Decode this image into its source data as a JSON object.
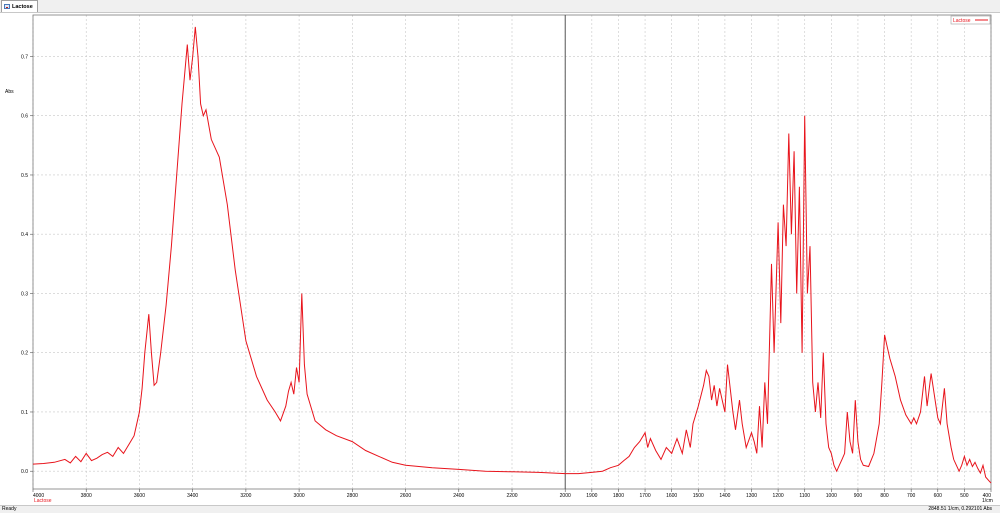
{
  "window": {
    "tab_title": "Lactose"
  },
  "status": {
    "left": "Ready",
    "right": "2848.51 1/cm, 0.292101 Abs"
  },
  "chart_data": {
    "type": "line",
    "title": "",
    "xlabel": "1/cm",
    "ylabel": "Abs",
    "x_reversed": true,
    "xlim": [
      4000,
      400
    ],
    "ylim": [
      -0.03,
      0.77
    ],
    "x_ticks": [
      4000,
      3800,
      3600,
      3400,
      3200,
      3000,
      2800,
      2600,
      2400,
      2200,
      2000,
      1900,
      1800,
      1700,
      1600,
      1500,
      1400,
      1300,
      1200,
      1100,
      1000,
      900,
      800,
      700,
      600,
      500,
      400
    ],
    "x_tick_labels": [
      "4000",
      "3800",
      "3600",
      "3400",
      "3200",
      "3000",
      "2800",
      "2600",
      "2400",
      "2200",
      "2000",
      "1900",
      "1800",
      "1700",
      "1600",
      "1500",
      "1400",
      "1300",
      "1200",
      "1100",
      "1000",
      "900",
      "800",
      "700",
      "600",
      "500",
      "400"
    ],
    "y_ticks": [
      0.0,
      0.1,
      0.2,
      0.3,
      0.4,
      0.5,
      0.6,
      0.7
    ],
    "y_tick_labels": [
      "0.0",
      "0.1",
      "0.2",
      "0.3",
      "0.4",
      "0.5",
      "0.6",
      "0.7"
    ],
    "grid": true,
    "cursor_x": 2000,
    "legend": {
      "placement": "top-right",
      "entries": [
        "Lactose"
      ]
    },
    "x_axis_series_label": "Lactose",
    "series": [
      {
        "name": "Lactose",
        "color": "#e8141c",
        "points": [
          [
            4000,
            0.012
          ],
          [
            3960,
            0.013
          ],
          [
            3920,
            0.015
          ],
          [
            3880,
            0.02
          ],
          [
            3860,
            0.014
          ],
          [
            3840,
            0.025
          ],
          [
            3820,
            0.016
          ],
          [
            3800,
            0.03
          ],
          [
            3780,
            0.018
          ],
          [
            3760,
            0.022
          ],
          [
            3740,
            0.028
          ],
          [
            3720,
            0.032
          ],
          [
            3700,
            0.025
          ],
          [
            3680,
            0.04
          ],
          [
            3660,
            0.03
          ],
          [
            3640,
            0.045
          ],
          [
            3620,
            0.06
          ],
          [
            3600,
            0.1
          ],
          [
            3590,
            0.14
          ],
          [
            3580,
            0.2
          ],
          [
            3565,
            0.265
          ],
          [
            3555,
            0.2
          ],
          [
            3545,
            0.145
          ],
          [
            3535,
            0.15
          ],
          [
            3520,
            0.2
          ],
          [
            3500,
            0.28
          ],
          [
            3480,
            0.38
          ],
          [
            3460,
            0.5
          ],
          [
            3440,
            0.62
          ],
          [
            3420,
            0.72
          ],
          [
            3410,
            0.66
          ],
          [
            3400,
            0.7
          ],
          [
            3390,
            0.75
          ],
          [
            3380,
            0.7
          ],
          [
            3370,
            0.62
          ],
          [
            3360,
            0.6
          ],
          [
            3350,
            0.61
          ],
          [
            3330,
            0.56
          ],
          [
            3300,
            0.53
          ],
          [
            3270,
            0.45
          ],
          [
            3240,
            0.34
          ],
          [
            3200,
            0.22
          ],
          [
            3160,
            0.16
          ],
          [
            3120,
            0.12
          ],
          [
            3090,
            0.1
          ],
          [
            3070,
            0.085
          ],
          [
            3050,
            0.11
          ],
          [
            3040,
            0.135
          ],
          [
            3030,
            0.15
          ],
          [
            3020,
            0.13
          ],
          [
            3010,
            0.175
          ],
          [
            3000,
            0.15
          ],
          [
            2990,
            0.3
          ],
          [
            2980,
            0.18
          ],
          [
            2970,
            0.13
          ],
          [
            2940,
            0.085
          ],
          [
            2900,
            0.07
          ],
          [
            2860,
            0.06
          ],
          [
            2800,
            0.05
          ],
          [
            2750,
            0.035
          ],
          [
            2700,
            0.025
          ],
          [
            2650,
            0.015
          ],
          [
            2600,
            0.01
          ],
          [
            2500,
            0.006
          ],
          [
            2400,
            0.003
          ],
          [
            2300,
            0.0
          ],
          [
            2200,
            -0.001
          ],
          [
            2100,
            -0.002
          ],
          [
            2000,
            -0.004
          ],
          [
            1950,
            -0.004
          ],
          [
            1900,
            -0.002
          ],
          [
            1860,
            0.0
          ],
          [
            1830,
            0.006
          ],
          [
            1800,
            0.01
          ],
          [
            1780,
            0.018
          ],
          [
            1760,
            0.025
          ],
          [
            1740,
            0.04
          ],
          [
            1720,
            0.05
          ],
          [
            1700,
            0.065
          ],
          [
            1690,
            0.04
          ],
          [
            1680,
            0.055
          ],
          [
            1660,
            0.035
          ],
          [
            1640,
            0.02
          ],
          [
            1620,
            0.04
          ],
          [
            1600,
            0.03
          ],
          [
            1580,
            0.055
          ],
          [
            1560,
            0.03
          ],
          [
            1545,
            0.07
          ],
          [
            1530,
            0.04
          ],
          [
            1520,
            0.08
          ],
          [
            1500,
            0.11
          ],
          [
            1480,
            0.145
          ],
          [
            1470,
            0.17
          ],
          [
            1460,
            0.16
          ],
          [
            1450,
            0.12
          ],
          [
            1440,
            0.145
          ],
          [
            1430,
            0.11
          ],
          [
            1420,
            0.14
          ],
          [
            1410,
            0.12
          ],
          [
            1400,
            0.1
          ],
          [
            1390,
            0.18
          ],
          [
            1380,
            0.14
          ],
          [
            1370,
            0.1
          ],
          [
            1360,
            0.07
          ],
          [
            1345,
            0.12
          ],
          [
            1335,
            0.08
          ],
          [
            1320,
            0.04
          ],
          [
            1300,
            0.065
          ],
          [
            1290,
            0.05
          ],
          [
            1280,
            0.03
          ],
          [
            1270,
            0.11
          ],
          [
            1260,
            0.04
          ],
          [
            1250,
            0.15
          ],
          [
            1240,
            0.08
          ],
          [
            1225,
            0.35
          ],
          [
            1215,
            0.2
          ],
          [
            1200,
            0.42
          ],
          [
            1190,
            0.25
          ],
          [
            1180,
            0.45
          ],
          [
            1170,
            0.38
          ],
          [
            1160,
            0.57
          ],
          [
            1150,
            0.4
          ],
          [
            1140,
            0.54
          ],
          [
            1130,
            0.3
          ],
          [
            1120,
            0.48
          ],
          [
            1110,
            0.2
          ],
          [
            1100,
            0.6
          ],
          [
            1090,
            0.3
          ],
          [
            1080,
            0.38
          ],
          [
            1070,
            0.15
          ],
          [
            1060,
            0.1
          ],
          [
            1050,
            0.15
          ],
          [
            1040,
            0.09
          ],
          [
            1030,
            0.2
          ],
          [
            1020,
            0.08
          ],
          [
            1010,
            0.04
          ],
          [
            1000,
            0.03
          ],
          [
            990,
            0.01
          ],
          [
            980,
            0.0
          ],
          [
            970,
            0.01
          ],
          [
            960,
            0.02
          ],
          [
            950,
            0.03
          ],
          [
            940,
            0.1
          ],
          [
            930,
            0.05
          ],
          [
            920,
            0.03
          ],
          [
            910,
            0.12
          ],
          [
            900,
            0.05
          ],
          [
            890,
            0.02
          ],
          [
            880,
            0.01
          ],
          [
            860,
            0.008
          ],
          [
            840,
            0.03
          ],
          [
            820,
            0.08
          ],
          [
            810,
            0.15
          ],
          [
            800,
            0.23
          ],
          [
            790,
            0.21
          ],
          [
            780,
            0.19
          ],
          [
            760,
            0.16
          ],
          [
            740,
            0.12
          ],
          [
            720,
            0.095
          ],
          [
            700,
            0.08
          ],
          [
            690,
            0.09
          ],
          [
            680,
            0.08
          ],
          [
            665,
            0.1
          ],
          [
            650,
            0.16
          ],
          [
            640,
            0.11
          ],
          [
            625,
            0.165
          ],
          [
            610,
            0.12
          ],
          [
            600,
            0.09
          ],
          [
            590,
            0.08
          ],
          [
            575,
            0.14
          ],
          [
            565,
            0.08
          ],
          [
            550,
            0.04
          ],
          [
            540,
            0.02
          ],
          [
            530,
            0.01
          ],
          [
            520,
            0.0
          ],
          [
            510,
            0.01
          ],
          [
            500,
            0.025
          ],
          [
            490,
            0.01
          ],
          [
            480,
            0.02
          ],
          [
            470,
            0.008
          ],
          [
            460,
            0.015
          ],
          [
            450,
            0.005
          ],
          [
            440,
            -0.003
          ],
          [
            430,
            0.01
          ],
          [
            420,
            -0.01
          ],
          [
            410,
            -0.015
          ],
          [
            400,
            -0.02
          ]
        ]
      }
    ]
  }
}
